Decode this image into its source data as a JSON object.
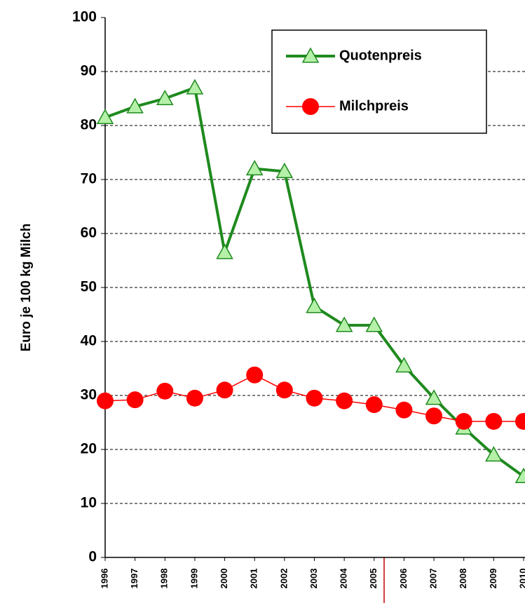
{
  "chart_data": {
    "type": "line",
    "y_label": "Euro je 100 kg Milch",
    "categories": [
      "1996",
      "1997",
      "1998",
      "1999",
      "2000",
      "2001",
      "2002",
      "2003",
      "2004",
      "2005",
      "2006",
      "2007",
      "2008",
      "2009",
      "2010"
    ],
    "series": [
      {
        "name": "Quotenpreis",
        "color": "#1e8a1e",
        "marker": "triangle",
        "marker_color": "#b5f0a8",
        "values": [
          81.5,
          83.5,
          85,
          87,
          56.5,
          72,
          71.5,
          46.5,
          43,
          43,
          35.5,
          29.5,
          24,
          19,
          15
        ]
      },
      {
        "name": "Milchpreis",
        "color": "#ff0000",
        "marker": "circle",
        "marker_color": "#ff0000",
        "values": [
          29,
          29.2,
          30.8,
          29.5,
          31,
          33.8,
          31,
          29.5,
          29,
          28.3,
          27.3,
          26.2,
          25.2,
          25.2,
          25.2
        ]
      }
    ],
    "ylim": [
      0,
      100
    ],
    "yticks": [
      0,
      10,
      20,
      30,
      40,
      50,
      60,
      70,
      80,
      90,
      100
    ],
    "grid": true
  }
}
